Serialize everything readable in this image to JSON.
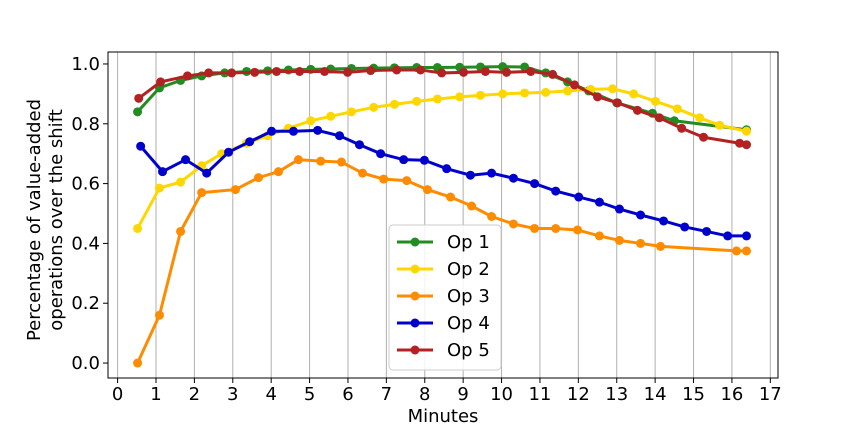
{
  "chart_data": {
    "type": "line",
    "xlabel": "Minutes",
    "ylabel": [
      "Percentage of value-added",
      "operations over the shift"
    ],
    "xlim": [
      -0.25,
      17.2
    ],
    "ylim": [
      -0.05,
      1.04
    ],
    "xticks": [
      0,
      1,
      2,
      3,
      4,
      5,
      6,
      7,
      8,
      9,
      10,
      11,
      12,
      13,
      14,
      15,
      16,
      17
    ],
    "yticks": [
      {
        "value": 0,
        "label": "0.0"
      },
      0.2,
      0.4,
      0.6,
      0.8,
      {
        "value": 1,
        "label": "1.0"
      }
    ],
    "grid": "x",
    "legend": "lower center",
    "series": [
      {
        "name": "Op 1",
        "color": "#228b22",
        "x": [
          0.52,
          1.09,
          1.64,
          2.19,
          2.79,
          3.36,
          3.91,
          4.45,
          5.03,
          5.55,
          6.09,
          6.67,
          7.21,
          7.79,
          8.33,
          8.91,
          9.45,
          10.03,
          10.6,
          11.15,
          11.72,
          12.27,
          13.0,
          13.93,
          14.5,
          16.38
        ],
        "values": [
          0.84,
          0.92,
          0.945,
          0.96,
          0.97,
          0.975,
          0.977,
          0.98,
          0.982,
          0.983,
          0.985,
          0.986,
          0.987,
          0.988,
          0.988,
          0.989,
          0.99,
          0.991,
          0.99,
          0.97,
          0.94,
          0.91,
          0.87,
          0.835,
          0.81,
          0.78
        ]
      },
      {
        "name": "Op 2",
        "color": "#ffd700",
        "x": [
          0.52,
          1.09,
          1.64,
          2.19,
          2.71,
          3.36,
          3.91,
          4.45,
          5.03,
          5.55,
          6.09,
          6.67,
          7.21,
          7.79,
          8.33,
          8.91,
          9.45,
          10.03,
          10.6,
          11.15,
          11.72,
          12.32,
          12.89,
          13.44,
          14.01,
          14.58,
          15.16,
          15.68,
          16.38
        ],
        "values": [
          0.45,
          0.585,
          0.605,
          0.66,
          0.7,
          0.735,
          0.76,
          0.785,
          0.81,
          0.825,
          0.84,
          0.855,
          0.865,
          0.875,
          0.883,
          0.89,
          0.895,
          0.9,
          0.903,
          0.905,
          0.91,
          0.915,
          0.917,
          0.9,
          0.875,
          0.85,
          0.82,
          0.795,
          0.775
        ]
      },
      {
        "name": "Op 3",
        "color": "#ff8c00",
        "x": [
          0.52,
          1.09,
          1.64,
          2.19,
          3.07,
          3.67,
          4.19,
          4.71,
          5.29,
          5.83,
          6.38,
          6.93,
          7.53,
          8.07,
          8.67,
          9.22,
          9.74,
          10.31,
          10.86,
          11.41,
          11.98,
          12.55,
          13.07,
          13.62,
          14.14,
          16.12,
          16.38
        ],
        "values": [
          0.0,
          0.16,
          0.44,
          0.57,
          0.58,
          0.62,
          0.64,
          0.68,
          0.675,
          0.672,
          0.635,
          0.615,
          0.61,
          0.58,
          0.555,
          0.525,
          0.49,
          0.465,
          0.45,
          0.45,
          0.445,
          0.425,
          0.41,
          0.4,
          0.39,
          0.375,
          0.375
        ]
      },
      {
        "name": "Op 4",
        "color": "#0000cd",
        "x": [
          0.6,
          1.17,
          1.77,
          2.32,
          2.89,
          3.44,
          4.01,
          4.58,
          5.21,
          5.78,
          6.3,
          6.85,
          7.45,
          7.99,
          8.57,
          9.19,
          9.74,
          10.31,
          10.86,
          11.41,
          12.01,
          12.55,
          13.07,
          13.62,
          14.22,
          14.77,
          15.34,
          15.89,
          16.38
        ],
        "values": [
          0.725,
          0.64,
          0.68,
          0.635,
          0.705,
          0.74,
          0.775,
          0.775,
          0.778,
          0.76,
          0.73,
          0.7,
          0.68,
          0.678,
          0.65,
          0.628,
          0.635,
          0.618,
          0.6,
          0.575,
          0.555,
          0.538,
          0.515,
          0.495,
          0.475,
          0.455,
          0.44,
          0.425,
          0.425
        ]
      },
      {
        "name": "Op 5",
        "color": "#b22222",
        "x": [
          0.55,
          1.12,
          1.82,
          2.37,
          2.97,
          3.57,
          4.14,
          4.74,
          5.39,
          5.99,
          6.59,
          7.27,
          7.89,
          8.44,
          9.01,
          9.58,
          10.13,
          10.76,
          11.33,
          11.9,
          12.5,
          13.02,
          13.54,
          14.11,
          14.69,
          15.26,
          16.2,
          16.38
        ],
        "values": [
          0.885,
          0.94,
          0.96,
          0.97,
          0.97,
          0.972,
          0.975,
          0.975,
          0.975,
          0.972,
          0.978,
          0.98,
          0.98,
          0.97,
          0.972,
          0.975,
          0.972,
          0.975,
          0.965,
          0.93,
          0.89,
          0.87,
          0.845,
          0.82,
          0.785,
          0.755,
          0.735,
          0.73
        ]
      }
    ]
  }
}
